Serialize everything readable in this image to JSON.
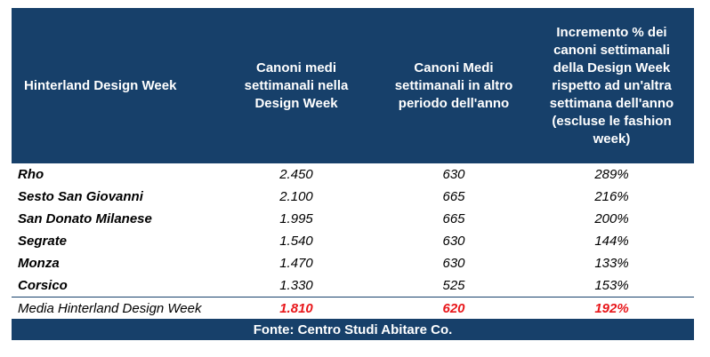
{
  "table": {
    "headers": [
      "Hinterland Design Week",
      "Canoni medi settimanali nella Design Week",
      "Canoni Medi settimanali in altro periodo dell'anno",
      "Incremento % dei canoni settimanali della Design Week rispetto ad un'altra settimana dell'anno (escluse le fashion week)"
    ],
    "rows": [
      {
        "city": "Rho",
        "design_week": "2.450",
        "other_period": "630",
        "increment": "289%"
      },
      {
        "city": "Sesto San Giovanni",
        "design_week": "2.100",
        "other_period": "665",
        "increment": "216%"
      },
      {
        "city": "San Donato Milanese",
        "design_week": "1.995",
        "other_period": "665",
        "increment": "200%"
      },
      {
        "city": "Segrate",
        "design_week": "1.540",
        "other_period": "630",
        "increment": "144%"
      },
      {
        "city": "Monza",
        "design_week": "1.470",
        "other_period": "630",
        "increment": "133%"
      },
      {
        "city": "Corsico",
        "design_week": "1.330",
        "other_period": "525",
        "increment": "153%"
      }
    ],
    "average": {
      "label": "Media Hinterland Design Week",
      "design_week": "1.810",
      "other_period": "620",
      "increment": "192%"
    },
    "source": "Fonte: Centro Studi Abitare Co."
  },
  "colors": {
    "header_background": "#17406a",
    "header_text": "#ffffff",
    "highlight_red": "#e8171b"
  }
}
